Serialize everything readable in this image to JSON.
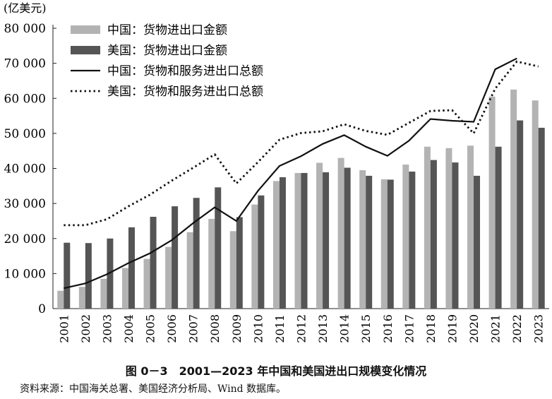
{
  "chart_data": {
    "type": "bar",
    "unit_label": "(亿美元)",
    "categories": [
      "2001",
      "2002",
      "2003",
      "2004",
      "2005",
      "2006",
      "2007",
      "2008",
      "2009",
      "2010",
      "2011",
      "2012",
      "2013",
      "2014",
      "2015",
      "2016",
      "2017",
      "2018",
      "2019",
      "2020",
      "2021",
      "2022",
      "2023"
    ],
    "ylim": [
      0,
      80000
    ],
    "yticks": [
      0,
      10000,
      20000,
      30000,
      40000,
      50000,
      60000,
      70000,
      80000
    ],
    "ytick_labels": [
      "0",
      "10 000",
      "20 000",
      "30 000",
      "40 000",
      "50 000",
      "60 000",
      "70 000",
      "80 000"
    ],
    "grid": false,
    "legend_position": "top-left",
    "series": [
      {
        "name": "中国：货物进出口金额",
        "kind": "bar",
        "color": "#b3b3b3",
        "values": [
          5100,
          6200,
          8500,
          11600,
          14200,
          17600,
          21800,
          25600,
          22100,
          29700,
          36400,
          38700,
          41600,
          43000,
          39500,
          36900,
          41100,
          46200,
          45800,
          46500,
          60500,
          62500,
          59400
        ]
      },
      {
        "name": "美国：货物进出口金额",
        "kind": "bar",
        "color": "#555555",
        "values": [
          18800,
          18700,
          20000,
          23200,
          26200,
          29200,
          31600,
          34600,
          26100,
          32300,
          37500,
          38700,
          38900,
          40200,
          37900,
          36800,
          39100,
          42400,
          41700,
          37900,
          46200,
          53700,
          51600
        ]
      },
      {
        "name": "中国：货物和服务进出口总额",
        "kind": "line",
        "style": "solid",
        "color": "#111111",
        "values": [
          5800,
          7200,
          9800,
          13000,
          15800,
          19500,
          24400,
          28900,
          25000,
          33600,
          40700,
          43500,
          47000,
          49500,
          46200,
          43600,
          47900,
          54100,
          53600,
          53300,
          68300,
          71400,
          null
        ]
      },
      {
        "name": "美国：货物和服务进出口总额",
        "kind": "line",
        "style": "dotted",
        "color": "#111111",
        "values": [
          23800,
          23800,
          25500,
          29200,
          32500,
          36500,
          40200,
          44000,
          35700,
          41800,
          48200,
          50100,
          50600,
          52600,
          50700,
          49600,
          53000,
          56400,
          56600,
          50000,
          62800,
          70500,
          69100
        ]
      }
    ]
  },
  "caption": "图 0－3　2001—2023 年中国和美国进出口规模变化情况",
  "source": "资料来源：中国海关总署、美国经济分析局、Wind 数据库。"
}
